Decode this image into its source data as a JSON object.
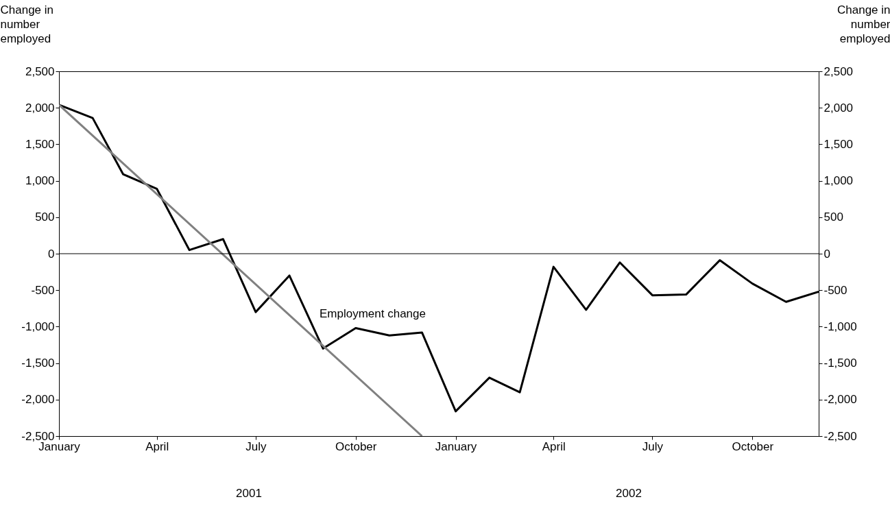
{
  "chart_data": {
    "type": "line",
    "ylabel": "Change in number employed",
    "y2label": "Change in number employed",
    "x": [
      "2001-01",
      "2001-02",
      "2001-03",
      "2001-04",
      "2001-05",
      "2001-06",
      "2001-07",
      "2001-08",
      "2001-09",
      "2001-10",
      "2001-11",
      "2001-12",
      "2002-01",
      "2002-02",
      "2002-03",
      "2002-04",
      "2002-05",
      "2002-06",
      "2002-07",
      "2002-08",
      "2002-09",
      "2002-10",
      "2002-11",
      "2002-12"
    ],
    "series": [
      {
        "name": "Employment change",
        "color": "#000000",
        "values": [
          2040,
          1860,
          1090,
          890,
          50,
          200,
          -800,
          -300,
          -1300,
          -1020,
          -1120,
          -1080,
          -2160,
          -1700,
          -1900,
          -180,
          -770,
          -120,
          -570,
          -560,
          -90,
          -410,
          -660,
          -520
        ]
      },
      {
        "type": "line",
        "color": "#808080",
        "x": [
          "2001-01",
          "2001-12"
        ],
        "values": [
          2040,
          -2500
        ]
      }
    ],
    "xlim": [
      "2001-01",
      "2002-12"
    ],
    "xticks": [
      {
        "value": "2001-01",
        "label": "January"
      },
      {
        "value": "2001-04",
        "label": "April"
      },
      {
        "value": "2001-07",
        "label": "July"
      },
      {
        "value": "2001-10",
        "label": "October"
      },
      {
        "value": "2002-01",
        "label": "January"
      },
      {
        "value": "2002-04",
        "label": "April"
      },
      {
        "value": "2002-07",
        "label": "July"
      },
      {
        "value": "2002-10",
        "label": "October"
      }
    ],
    "ylim": [
      -2500,
      2500
    ],
    "yticks": [
      {
        "value": -2500,
        "label": "-2,500"
      },
      {
        "value": -2000,
        "label": "-2,000"
      },
      {
        "value": -1500,
        "label": "-1,500"
      },
      {
        "value": -1000,
        "label": "-1,000"
      },
      {
        "value": -500,
        "label": "-500"
      },
      {
        "value": 0,
        "label": "0"
      },
      {
        "value": 500,
        "label": "500"
      },
      {
        "value": 1000,
        "label": "1,000"
      },
      {
        "value": 1500,
        "label": "1,500"
      },
      {
        "value": 2000,
        "label": "2,000"
      },
      {
        "value": 2500,
        "label": "2,500"
      }
    ],
    "y2lim": [
      -2500,
      2500
    ],
    "y2ticks": [
      {
        "value": -2500,
        "label": "-2,500"
      },
      {
        "value": -2000,
        "label": "-2,000"
      },
      {
        "value": -1500,
        "label": "-1,500"
      },
      {
        "value": -1000,
        "label": "-1,000"
      },
      {
        "value": -500,
        "label": "-500"
      },
      {
        "value": 0,
        "label": "0"
      },
      {
        "value": 500,
        "label": "500"
      },
      {
        "value": 1000,
        "label": "1,000"
      },
      {
        "value": 1500,
        "label": "1,500"
      },
      {
        "value": 2000,
        "label": "2,000"
      },
      {
        "value": 2500,
        "label": "2,500"
      }
    ],
    "ref_lines": [
      {
        "axis": "y2",
        "value": 0,
        "color": "#000000"
      }
    ],
    "annotations": [
      "2001",
      "2002"
    ],
    "grid": false,
    "marker": "none",
    "line_style": "solid"
  }
}
